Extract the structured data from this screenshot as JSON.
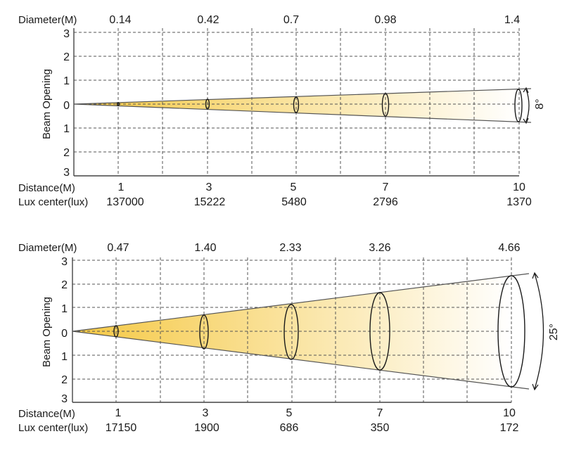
{
  "diagrams": [
    {
      "id": "narrow",
      "angle_label": "8°",
      "diameter_label": "Diameter(M)",
      "distance_label": "Distance(M)",
      "lux_label": "Lux center(lux)",
      "beam_opening_label": "Beam Opening",
      "y_ticks": [
        "3",
        "2",
        "1",
        "0",
        "1",
        "2",
        "3"
      ],
      "beam_points": [
        {
          "distance": "1",
          "diameter": "0.14",
          "lux": "137000"
        },
        {
          "distance": "3",
          "diameter": "0.42",
          "lux": "15222"
        },
        {
          "distance": "5",
          "diameter": "0.7",
          "lux": "5480"
        },
        {
          "distance": "7",
          "diameter": "0.98",
          "lux": "2796"
        },
        {
          "distance": "10",
          "diameter": "1.4",
          "lux": "1370"
        }
      ]
    },
    {
      "id": "wide",
      "angle_label": "25°",
      "diameter_label": "Diameter(M)",
      "distance_label": "Distance(M)",
      "lux_label": "Lux center(lux)",
      "beam_opening_label": "Beam Opening",
      "y_ticks": [
        "3",
        "2",
        "1",
        "0",
        "1",
        "2",
        "3"
      ],
      "beam_points": [
        {
          "distance": "1",
          "diameter": "0.47",
          "lux": "17150"
        },
        {
          "distance": "3",
          "diameter": "1.40",
          "lux": "1900"
        },
        {
          "distance": "5",
          "diameter": "2.33",
          "lux": "686"
        },
        {
          "distance": "7",
          "diameter": "3.26",
          "lux": "350"
        },
        {
          "distance": "10",
          "diameter": "4.66",
          "lux": "172"
        }
      ]
    }
  ],
  "colors": {
    "beam_start": "#f5c842",
    "beam_end": "#ffffff",
    "grid": "#555555",
    "text": "#1a1a1a"
  }
}
